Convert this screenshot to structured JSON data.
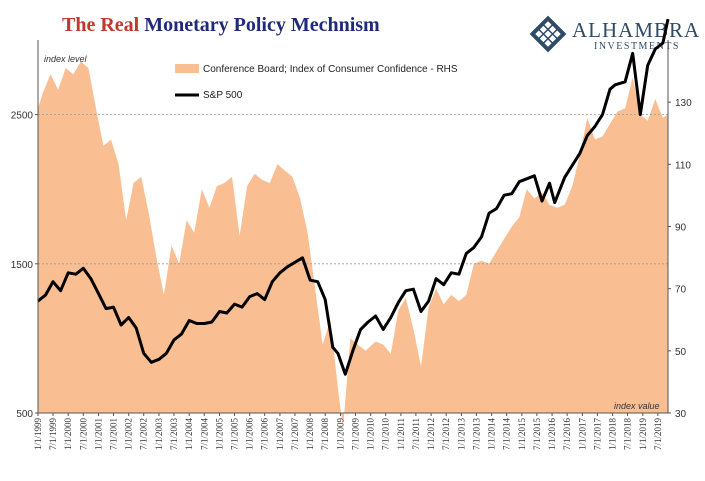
{
  "title": {
    "part1": "The Real",
    "part2": "Monetary Policy Mechnism"
  },
  "logo": {
    "brand": "ALHAMBRA",
    "sub": "INVESTMENTS",
    "icon": "diamond-lattice-icon"
  },
  "colors": {
    "area": "#f9bf93",
    "line": "#000000",
    "grid": "#9a9a9a"
  },
  "chart_data": {
    "type": "line",
    "x_range": [
      "1999-01-01",
      "2019-11-01"
    ],
    "x_ticks": [
      "1/1/1999",
      "7/1/1999",
      "1/1/2000",
      "7/1/2000",
      "1/1/2001",
      "7/1/2001",
      "1/1/2002",
      "7/1/2002",
      "1/1/2003",
      "7/1/2003",
      "1/1/2004",
      "7/1/2004",
      "1/1/2005",
      "7/1/2005",
      "1/1/2006",
      "7/1/2006",
      "1/1/2007",
      "7/1/2007",
      "1/1/2008",
      "7/1/2008",
      "1/1/2009",
      "7/1/2009",
      "1/1/2010",
      "7/1/2010",
      "1/1/2011",
      "7/1/2011",
      "1/1/2012",
      "7/1/2012",
      "1/1/2013",
      "7/1/2013",
      "1/1/2014",
      "7/1/2014",
      "1/1/2015",
      "7/1/2015",
      "1/1/2016",
      "7/1/2016",
      "1/1/2017",
      "7/1/2017",
      "1/1/2018",
      "7/1/2018",
      "1/1/2019",
      "7/1/2019"
    ],
    "y_left": {
      "label": "index level",
      "range": [
        500,
        3000
      ],
      "ticks": [
        500,
        1500,
        2500
      ]
    },
    "y_right": {
      "label": "index value",
      "range": [
        30,
        150
      ],
      "ticks": [
        30,
        50,
        70,
        90,
        110,
        130
      ]
    },
    "grid": {
      "horizontal_at_left": [
        1500,
        2500
      ]
    },
    "legend": {
      "position": "top-center"
    },
    "series": [
      {
        "name": "Conference Board; Index of Consumer Confidence - RHS",
        "type": "area",
        "axis": "right",
        "x": [
          "1999-01",
          "1999-03",
          "1999-06",
          "1999-09",
          "1999-12",
          "2000-03",
          "2000-06",
          "2000-09",
          "2000-12",
          "2001-03",
          "2001-06",
          "2001-09",
          "2001-12",
          "2002-03",
          "2002-06",
          "2002-09",
          "2002-12",
          "2003-03",
          "2003-06",
          "2003-09",
          "2003-12",
          "2004-03",
          "2004-06",
          "2004-09",
          "2004-12",
          "2005-03",
          "2005-06",
          "2005-09",
          "2005-12",
          "2006-03",
          "2006-06",
          "2006-09",
          "2006-12",
          "2007-03",
          "2007-06",
          "2007-09",
          "2007-12",
          "2008-03",
          "2008-06",
          "2008-09",
          "2008-12",
          "2009-02",
          "2009-05",
          "2009-08",
          "2009-11",
          "2010-03",
          "2010-06",
          "2010-09",
          "2010-12",
          "2011-03",
          "2011-06",
          "2011-09",
          "2011-12",
          "2012-03",
          "2012-06",
          "2012-09",
          "2012-12",
          "2013-03",
          "2013-06",
          "2013-09",
          "2013-12",
          "2014-03",
          "2014-06",
          "2014-09",
          "2014-12",
          "2015-03",
          "2015-06",
          "2015-09",
          "2015-12",
          "2016-03",
          "2016-06",
          "2016-09",
          "2016-12",
          "2017-03",
          "2017-06",
          "2017-09",
          "2017-12",
          "2018-03",
          "2018-06",
          "2018-09",
          "2018-12",
          "2019-03",
          "2019-06",
          "2019-09",
          "2019-11"
        ],
        "values": [
          128,
          133,
          139,
          134,
          141,
          139,
          143,
          141,
          128,
          116,
          118,
          110,
          92,
          104,
          106,
          94,
          80,
          68,
          84,
          78,
          92,
          88,
          102,
          96,
          103,
          104,
          106,
          87,
          103,
          107,
          105,
          104,
          110,
          108,
          106,
          99,
          88,
          70,
          52,
          60,
          38,
          25,
          54,
          52,
          50,
          53,
          52,
          49,
          63,
          67,
          57,
          45,
          64,
          70,
          65,
          68,
          66,
          68,
          78,
          79,
          78,
          82,
          86,
          90,
          93,
          102,
          99,
          101,
          97,
          96,
          97,
          103,
          113,
          125,
          118,
          119,
          123,
          127,
          128,
          138,
          126,
          124,
          131,
          125,
          126
        ],
        "color": "#f9bf93"
      },
      {
        "name": "S&P 500",
        "type": "line",
        "axis": "left",
        "x": [
          "1999-01",
          "1999-04",
          "1999-07",
          "1999-10",
          "2000-01",
          "2000-04",
          "2000-07",
          "2000-10",
          "2001-01",
          "2001-04",
          "2001-07",
          "2001-10",
          "2002-01",
          "2002-04",
          "2002-07",
          "2002-10",
          "2003-01",
          "2003-04",
          "2003-07",
          "2003-10",
          "2004-01",
          "2004-04",
          "2004-07",
          "2004-10",
          "2005-01",
          "2005-04",
          "2005-07",
          "2005-10",
          "2006-01",
          "2006-04",
          "2006-07",
          "2006-10",
          "2007-01",
          "2007-04",
          "2007-07",
          "2007-10",
          "2008-01",
          "2008-04",
          "2008-07",
          "2008-10",
          "2008-12",
          "2009-03",
          "2009-06",
          "2009-09",
          "2009-12",
          "2010-03",
          "2010-06",
          "2010-09",
          "2010-12",
          "2011-03",
          "2011-06",
          "2011-09",
          "2011-12",
          "2012-03",
          "2012-06",
          "2012-09",
          "2012-12",
          "2013-03",
          "2013-06",
          "2013-09",
          "2013-12",
          "2014-03",
          "2014-06",
          "2014-09",
          "2014-12",
          "2015-03",
          "2015-06",
          "2015-09",
          "2015-12",
          "2016-02",
          "2016-06",
          "2016-09",
          "2016-12",
          "2017-03",
          "2017-06",
          "2017-09",
          "2017-12",
          "2018-02",
          "2018-06",
          "2018-09",
          "2018-12",
          "2019-03",
          "2019-06",
          "2019-09",
          "2019-11"
        ],
        "values": [
          1250,
          1290,
          1380,
          1320,
          1440,
          1430,
          1470,
          1400,
          1300,
          1200,
          1210,
          1090,
          1140,
          1070,
          900,
          840,
          860,
          900,
          990,
          1030,
          1120,
          1100,
          1100,
          1110,
          1180,
          1170,
          1230,
          1210,
          1280,
          1300,
          1260,
          1380,
          1440,
          1480,
          1510,
          1540,
          1390,
          1380,
          1260,
          940,
          900,
          760,
          920,
          1060,
          1110,
          1150,
          1060,
          1140,
          1240,
          1320,
          1330,
          1180,
          1250,
          1400,
          1360,
          1440,
          1430,
          1570,
          1610,
          1680,
          1840,
          1870,
          1960,
          1970,
          2050,
          2070,
          2090,
          1920,
          2040,
          1910,
          2080,
          2160,
          2240,
          2360,
          2420,
          2500,
          2670,
          2700,
          2720,
          2910,
          2500,
          2830,
          2940,
          2980,
          3140
        ],
        "color": "#000000"
      }
    ]
  }
}
